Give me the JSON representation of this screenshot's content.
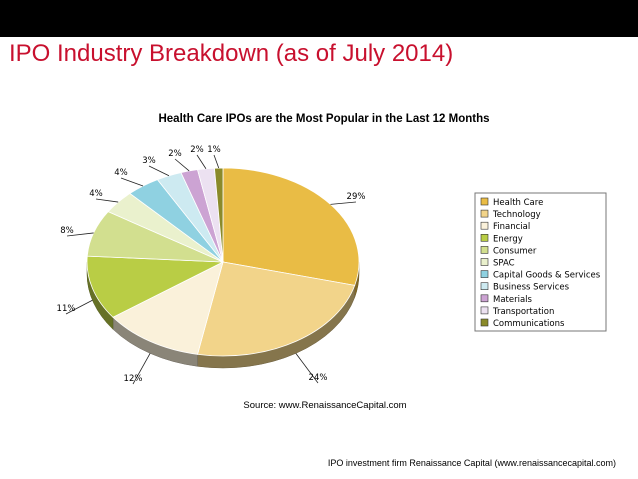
{
  "slide": {
    "title": "IPO Industry Breakdown (as of July 2014)",
    "footer": "IPO investment firm Renaissance Capital (www.renaissancecapital.com)",
    "topbar_color": "#000000",
    "title_color": "#c8102e"
  },
  "chart_data": {
    "type": "pie",
    "title": "Health Care IPOs are the Most Popular in the Last 12 Months",
    "source": "Source: www.RenaissanceCapital.com",
    "legend_position": "right",
    "slices": [
      {
        "name": "Health Care",
        "value": 29,
        "label": "29%",
        "color": "#e9bc45"
      },
      {
        "name": "Technology",
        "value": 24,
        "label": "24%",
        "color": "#f2d48a"
      },
      {
        "name": "Financial",
        "value": 12,
        "label": "12%",
        "color": "#faf1da"
      },
      {
        "name": "Energy",
        "value": 11,
        "label": "11%",
        "color": "#b9cd45"
      },
      {
        "name": "Consumer",
        "value": 8,
        "label": "8%",
        "color": "#d2df8f"
      },
      {
        "name": "SPAC",
        "value": 4,
        "label": "4%",
        "color": "#eaf1cd"
      },
      {
        "name": "Capital Goods & Services",
        "value": 4,
        "label": "4%",
        "color": "#8fd1e1"
      },
      {
        "name": "Business Services",
        "value": 3,
        "label": "3%",
        "color": "#cdeaf1"
      },
      {
        "name": "Materials",
        "value": 2,
        "label": "2%",
        "color": "#cca3d3"
      },
      {
        "name": "Transportation",
        "value": 2,
        "label": "2%",
        "color": "#ece1f1"
      },
      {
        "name": "Communications",
        "value": 1,
        "label": "1%",
        "color": "#8a8a2a"
      }
    ]
  }
}
